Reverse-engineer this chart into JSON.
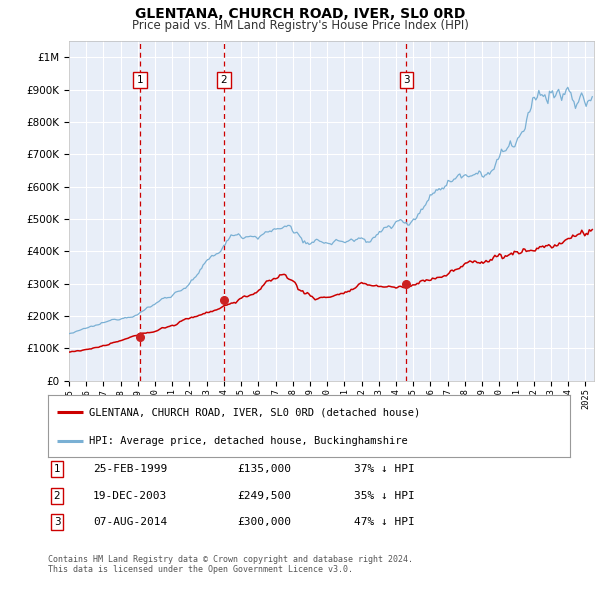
{
  "title": "GLENTANA, CHURCH ROAD, IVER, SL0 0RD",
  "subtitle": "Price paid vs. HM Land Registry's House Price Index (HPI)",
  "legend_label_red": "GLENTANA, CHURCH ROAD, IVER, SL0 0RD (detached house)",
  "legend_label_blue": "HPI: Average price, detached house, Buckinghamshire",
  "footer_line1": "Contains HM Land Registry data © Crown copyright and database right 2024.",
  "footer_line2": "This data is licensed under the Open Government Licence v3.0.",
  "transactions": [
    {
      "num": 1,
      "date": "25-FEB-1999",
      "price": "£135,000",
      "pct": "37% ↓ HPI",
      "year": 1999.13
    },
    {
      "num": 2,
      "date": "19-DEC-2003",
      "price": "£249,500",
      "pct": "35% ↓ HPI",
      "year": 2004.0
    },
    {
      "num": 3,
      "date": "07-AUG-2014",
      "price": "£300,000",
      "pct": "47% ↓ HPI",
      "year": 2014.6
    }
  ],
  "transaction_prices": [
    135000,
    249500,
    300000
  ],
  "ylim": [
    0,
    1050000
  ],
  "xlim_start": 1995.0,
  "xlim_end": 2025.5,
  "background_color": "#e8eef8",
  "grid_color": "#ffffff",
  "red_color": "#cc0000",
  "blue_color": "#7ab0d4",
  "dashed_color": "#cc0000",
  "title_fontsize": 10,
  "subtitle_fontsize": 8.5
}
